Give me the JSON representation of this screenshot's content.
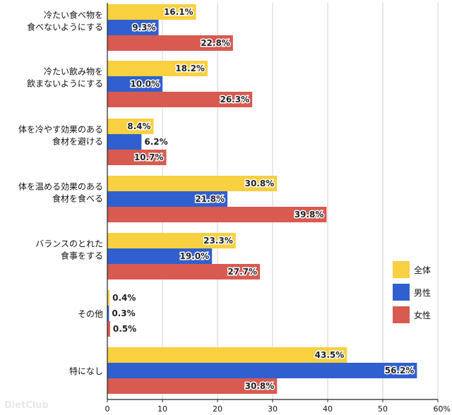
{
  "chart_data": {
    "type": "bar",
    "orientation": "horizontal",
    "categories": [
      [
        "冷たい食べ物を",
        "食べないようにする"
      ],
      [
        "冷たい飲み物を",
        "飲まないようにする"
      ],
      [
        "体を冷やす効果のある",
        "食材を避ける"
      ],
      [
        "体を温める効果のある",
        "食材を食べる"
      ],
      [
        "バランスのとれた",
        "食事をする"
      ],
      [
        "その他"
      ],
      [
        "特になし"
      ]
    ],
    "series": [
      {
        "name": "全体",
        "color": "#f8d040",
        "values": [
          16.1,
          18.2,
          8.4,
          30.8,
          23.3,
          0.4,
          43.5
        ]
      },
      {
        "name": "男性",
        "color": "#3060d0",
        "values": [
          9.3,
          10.0,
          6.2,
          21.8,
          19.0,
          0.3,
          56.2
        ]
      },
      {
        "name": "女性",
        "color": "#d85a50",
        "values": [
          22.8,
          26.3,
          10.7,
          39.8,
          27.7,
          0.5,
          30.8
        ]
      }
    ],
    "xlim": [
      0,
      60
    ],
    "xticks": [
      "0",
      "10",
      "20",
      "30",
      "40",
      "50",
      "60%"
    ],
    "legend_position": "right"
  },
  "watermark": "DietClub"
}
